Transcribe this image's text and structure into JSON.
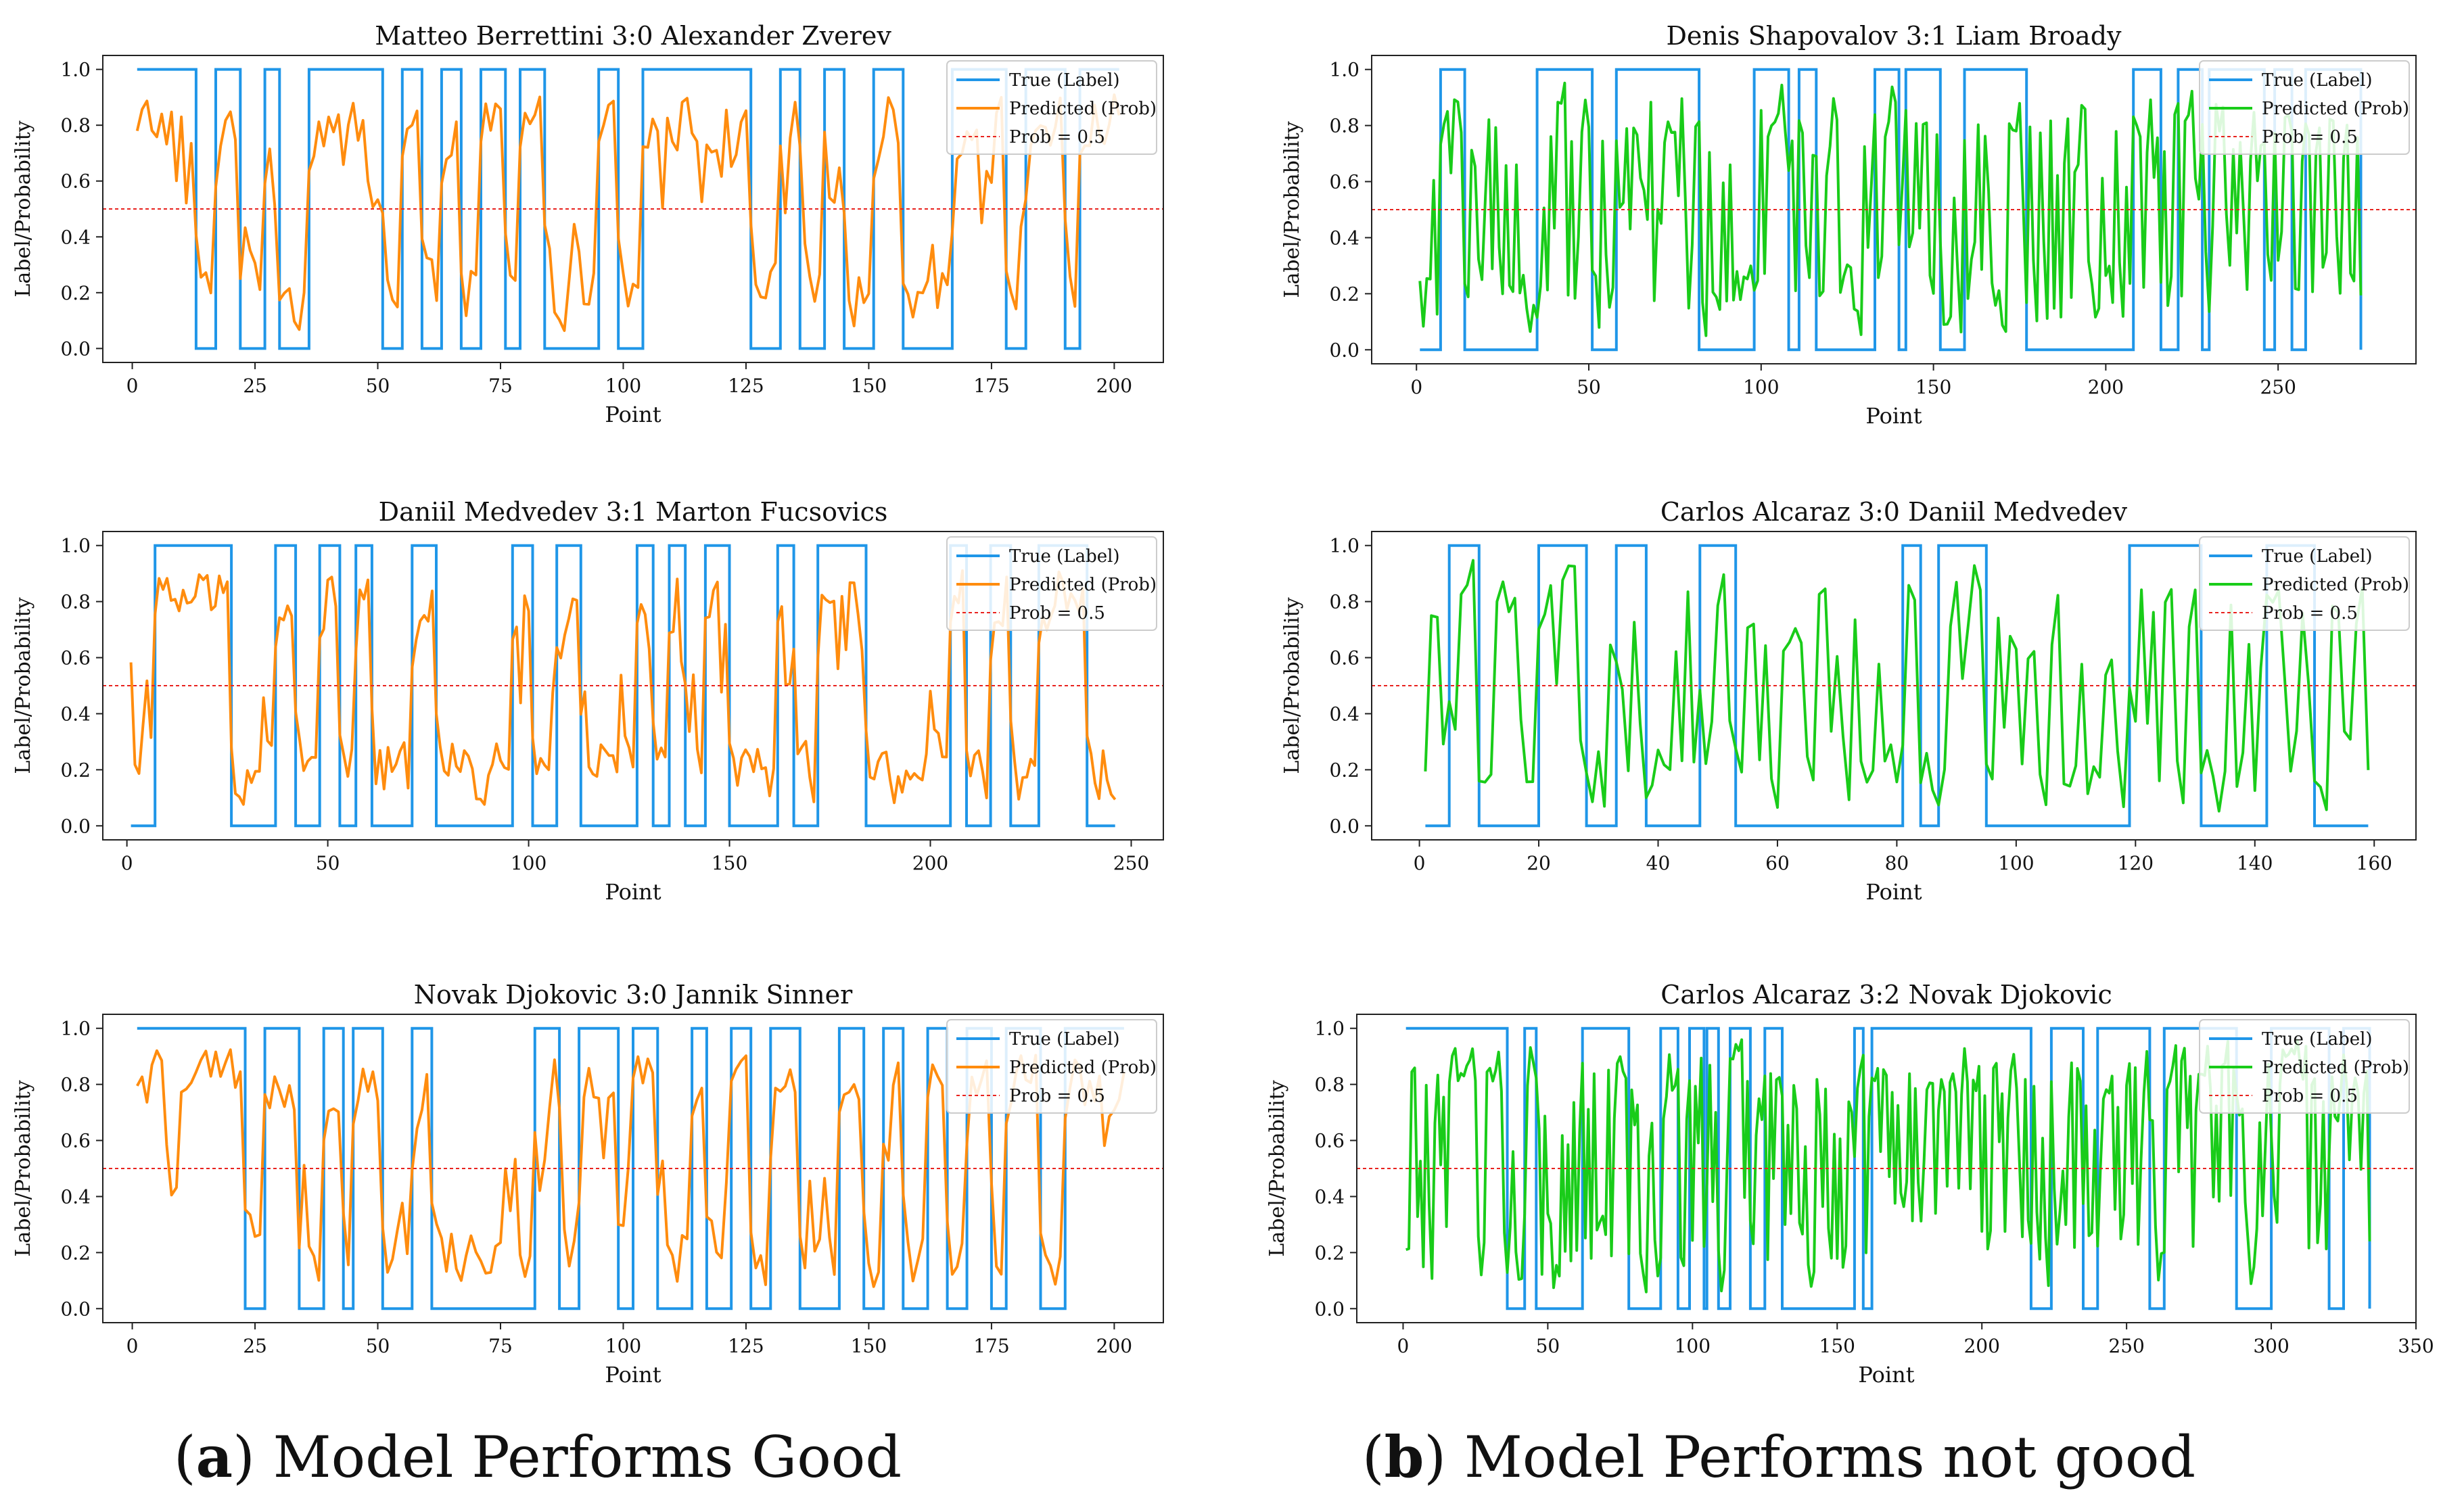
{
  "colors": {
    "true_label": "#1f96e8",
    "pred_good": "#ff8c0e",
    "pred_bad": "#19cc19",
    "threshold": "#e8231f"
  },
  "captions": {
    "a": {
      "letter": "a",
      "text": " Model Performs Good"
    },
    "b": {
      "letter": "b",
      "text": " Model Performs not good"
    }
  },
  "chart_data": [
    {
      "type": "line",
      "panel": "a-top",
      "title": "Matteo Berrettini 3:0 Alexander Zverev",
      "xlabel": "Point",
      "ylabel": "Label/Probability",
      "xlim": [
        -6,
        210
      ],
      "ylim": [
        -0.05,
        1.05
      ],
      "xticks": [
        0,
        25,
        50,
        75,
        100,
        125,
        150,
        175,
        200
      ],
      "yticks": [
        0.0,
        0.2,
        0.4,
        0.6,
        0.8,
        1.0
      ],
      "n_points": 201,
      "threshold": 0.5,
      "legend": [
        "True (Label)",
        "Predicted (Prob)",
        "Prob = 0.5"
      ],
      "legend_position": "top-right",
      "label_segments": [
        [
          1,
          1
        ],
        [
          13,
          0
        ],
        [
          17,
          1
        ],
        [
          22,
          0
        ],
        [
          27,
          1
        ],
        [
          30,
          0
        ],
        [
          36,
          1
        ],
        [
          51,
          0
        ],
        [
          55,
          1
        ],
        [
          59,
          0
        ],
        [
          63,
          1
        ],
        [
          67,
          0
        ],
        [
          71,
          1
        ],
        [
          76,
          0
        ],
        [
          79,
          1
        ],
        [
          84,
          0
        ],
        [
          95,
          1
        ],
        [
          99,
          0
        ],
        [
          104,
          1
        ],
        [
          126,
          0
        ],
        [
          132,
          1
        ],
        [
          136,
          0
        ],
        [
          141,
          1
        ],
        [
          145,
          0
        ],
        [
          151,
          1
        ],
        [
          157,
          0
        ],
        [
          167,
          1
        ],
        [
          178,
          0
        ],
        [
          182,
          1
        ],
        [
          190,
          0
        ],
        [
          193,
          1
        ],
        [
          201,
          1
        ]
      ],
      "pred_profile": "good"
    },
    {
      "type": "line",
      "panel": "a-mid",
      "title": "Daniil Medvedev 3:1 Marton Fucsovics",
      "xlabel": "Point",
      "ylabel": "Label/Probability",
      "xlim": [
        -6,
        258
      ],
      "ylim": [
        -0.05,
        1.05
      ],
      "xticks": [
        0,
        50,
        100,
        150,
        200,
        250
      ],
      "yticks": [
        0.0,
        0.2,
        0.4,
        0.6,
        0.8,
        1.0
      ],
      "n_points": 246,
      "threshold": 0.5,
      "legend": [
        "True (Label)",
        "Predicted (Prob)",
        "Prob = 0.5"
      ],
      "legend_position": "top-right",
      "label_segments": [
        [
          1,
          0
        ],
        [
          7,
          1
        ],
        [
          26,
          0
        ],
        [
          37,
          1
        ],
        [
          42,
          0
        ],
        [
          48,
          1
        ],
        [
          53,
          0
        ],
        [
          57,
          1
        ],
        [
          61,
          0
        ],
        [
          71,
          1
        ],
        [
          77,
          0
        ],
        [
          96,
          1
        ],
        [
          101,
          0
        ],
        [
          107,
          1
        ],
        [
          113,
          0
        ],
        [
          127,
          1
        ],
        [
          131,
          0
        ],
        [
          135,
          1
        ],
        [
          139,
          0
        ],
        [
          144,
          1
        ],
        [
          150,
          0
        ],
        [
          162,
          1
        ],
        [
          166,
          0
        ],
        [
          172,
          1
        ],
        [
          184,
          0
        ],
        [
          205,
          1
        ],
        [
          209,
          0
        ],
        [
          215,
          1
        ],
        [
          220,
          0
        ],
        [
          227,
          1
        ],
        [
          239,
          0
        ],
        [
          246,
          0
        ]
      ],
      "pred_profile": "good"
    },
    {
      "type": "line",
      "panel": "a-bot",
      "title": "Novak Djokovic 3:0 Jannik Sinner",
      "xlabel": "Point",
      "ylabel": "Label/Probability",
      "xlim": [
        -6,
        210
      ],
      "ylim": [
        -0.05,
        1.05
      ],
      "xticks": [
        0,
        25,
        50,
        75,
        100,
        125,
        150,
        175,
        200
      ],
      "yticks": [
        0.0,
        0.2,
        0.4,
        0.6,
        0.8,
        1.0
      ],
      "n_points": 202,
      "threshold": 0.5,
      "legend": [
        "True (Label)",
        "Predicted (Prob)",
        "Prob = 0.5"
      ],
      "legend_position": "top-right",
      "label_segments": [
        [
          1,
          1
        ],
        [
          23,
          0
        ],
        [
          27,
          1
        ],
        [
          34,
          0
        ],
        [
          39,
          1
        ],
        [
          43,
          0
        ],
        [
          45,
          1
        ],
        [
          51,
          0
        ],
        [
          57,
          1
        ],
        [
          61,
          0
        ],
        [
          82,
          1
        ],
        [
          87,
          0
        ],
        [
          91,
          1
        ],
        [
          99,
          0
        ],
        [
          102,
          1
        ],
        [
          107,
          0
        ],
        [
          114,
          1
        ],
        [
          117,
          0
        ],
        [
          122,
          1
        ],
        [
          126,
          0
        ],
        [
          130,
          1
        ],
        [
          136,
          0
        ],
        [
          144,
          1
        ],
        [
          149,
          0
        ],
        [
          153,
          1
        ],
        [
          157,
          0
        ],
        [
          162,
          1
        ],
        [
          166,
          0
        ],
        [
          170,
          1
        ],
        [
          175,
          0
        ],
        [
          178,
          1
        ],
        [
          185,
          0
        ],
        [
          190,
          1
        ],
        [
          202,
          1
        ]
      ],
      "pred_profile": "good"
    },
    {
      "type": "line",
      "panel": "b-top",
      "title": "Denis Shapovalov 3:1 Liam Broady",
      "xlabel": "Point",
      "ylabel": "Label/Probability",
      "xlim": [
        -13,
        290
      ],
      "ylim": [
        -0.05,
        1.05
      ],
      "xticks": [
        0,
        50,
        100,
        150,
        200,
        250
      ],
      "yticks": [
        0.0,
        0.2,
        0.4,
        0.6,
        0.8,
        1.0
      ],
      "n_points": 274,
      "threshold": 0.5,
      "legend": [
        "True (Label)",
        "Predicted (Prob)",
        "Prob = 0.5"
      ],
      "legend_position": "top-right",
      "label_segments": [
        [
          1,
          0
        ],
        [
          7,
          1
        ],
        [
          14,
          0
        ],
        [
          35,
          1
        ],
        [
          51,
          0
        ],
        [
          58,
          1
        ],
        [
          82,
          0
        ],
        [
          98,
          1
        ],
        [
          108,
          0
        ],
        [
          111,
          1
        ],
        [
          116,
          0
        ],
        [
          133,
          1
        ],
        [
          140,
          0
        ],
        [
          142,
          1
        ],
        [
          152,
          0
        ],
        [
          159,
          1
        ],
        [
          177,
          0
        ],
        [
          208,
          1
        ],
        [
          216,
          0
        ],
        [
          221,
          1
        ],
        [
          228,
          0
        ],
        [
          230,
          1
        ],
        [
          246,
          0
        ],
        [
          249,
          1
        ],
        [
          254,
          0
        ],
        [
          258,
          1
        ],
        [
          274,
          0
        ]
      ],
      "pred_profile": "bad"
    },
    {
      "type": "line",
      "panel": "b-mid",
      "title": "Carlos Alcaraz 3:0 Daniil Medvedev",
      "xlabel": "Point",
      "ylabel": "Label/Probability",
      "xlim": [
        -8,
        167
      ],
      "ylim": [
        -0.05,
        1.05
      ],
      "xticks": [
        0,
        20,
        40,
        60,
        80,
        100,
        120,
        140,
        160
      ],
      "yticks": [
        0.0,
        0.2,
        0.4,
        0.6,
        0.8,
        1.0
      ],
      "n_points": 159,
      "threshold": 0.5,
      "legend": [
        "True (Label)",
        "Predicted (Prob)",
        "Prob = 0.5"
      ],
      "legend_position": "top-right",
      "label_segments": [
        [
          1,
          0
        ],
        [
          5,
          1
        ],
        [
          10,
          0
        ],
        [
          20,
          1
        ],
        [
          28,
          0
        ],
        [
          33,
          1
        ],
        [
          38,
          0
        ],
        [
          47,
          1
        ],
        [
          53,
          0
        ],
        [
          81,
          1
        ],
        [
          84,
          0
        ],
        [
          87,
          1
        ],
        [
          95,
          0
        ],
        [
          119,
          1
        ],
        [
          131,
          0
        ],
        [
          142,
          1
        ],
        [
          150,
          0
        ],
        [
          159,
          0
        ]
      ],
      "pred_profile": "bad"
    },
    {
      "type": "line",
      "panel": "b-bot",
      "title": "Carlos Alcaraz 3:2 Novak Djokovic",
      "xlabel": "Point",
      "ylabel": "Label/Probability",
      "xlim": [
        -16,
        350
      ],
      "ylim": [
        -0.05,
        1.05
      ],
      "xticks": [
        0,
        50,
        100,
        150,
        200,
        250,
        300,
        350
      ],
      "yticks": [
        0.0,
        0.2,
        0.4,
        0.6,
        0.8,
        1.0
      ],
      "n_points": 334,
      "threshold": 0.5,
      "legend": [
        "True (Label)",
        "Predicted (Prob)",
        "Prob = 0.5"
      ],
      "legend_position": "top-right",
      "label_segments": [
        [
          1,
          1
        ],
        [
          36,
          0
        ],
        [
          42,
          1
        ],
        [
          46,
          0
        ],
        [
          62,
          1
        ],
        [
          78,
          0
        ],
        [
          89,
          1
        ],
        [
          95,
          0
        ],
        [
          99,
          1
        ],
        [
          104,
          0
        ],
        [
          105,
          1
        ],
        [
          109,
          0
        ],
        [
          113,
          1
        ],
        [
          120,
          0
        ],
        [
          125,
          1
        ],
        [
          131,
          0
        ],
        [
          156,
          1
        ],
        [
          159,
          0
        ],
        [
          162,
          1
        ],
        [
          217,
          0
        ],
        [
          224,
          1
        ],
        [
          235,
          0
        ],
        [
          240,
          1
        ],
        [
          258,
          0
        ],
        [
          263,
          1
        ],
        [
          288,
          0
        ],
        [
          300,
          1
        ],
        [
          320,
          0
        ],
        [
          325,
          1
        ],
        [
          334,
          0
        ]
      ],
      "pred_profile": "bad"
    }
  ]
}
